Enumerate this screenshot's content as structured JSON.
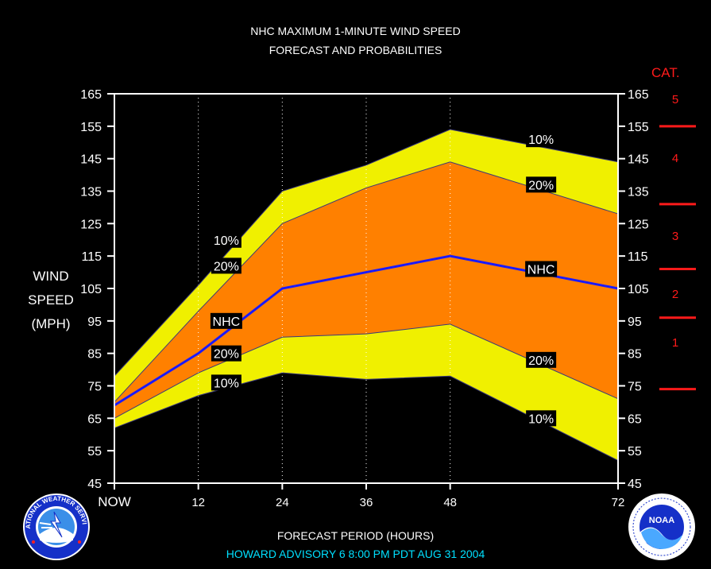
{
  "chart_data": {
    "type": "area",
    "title": "NHC MAXIMUM 1-MINUTE WIND SPEED",
    "subtitle": "FORECAST AND PROBABILITIES",
    "ylabel_lines": [
      "WIND",
      "SPEED",
      "(MPH)"
    ],
    "xlabel": "FORECAST PERIOD (HOURS)",
    "ylim": [
      45,
      165
    ],
    "yticks": [
      45,
      55,
      65,
      75,
      85,
      95,
      105,
      115,
      125,
      135,
      145,
      155,
      165
    ],
    "xlim": [
      0,
      72
    ],
    "xticks": [
      {
        "x": 0,
        "label": "NOW"
      },
      {
        "x": 12,
        "label": "12"
      },
      {
        "x": 24,
        "label": "24"
      },
      {
        "x": 36,
        "label": "36"
      },
      {
        "x": 48,
        "label": "48"
      },
      {
        "x": 72,
        "label": "72"
      }
    ],
    "x": [
      0,
      12,
      24,
      36,
      48,
      72
    ],
    "series": [
      {
        "name": "10%",
        "values": [
          78,
          106,
          135,
          143,
          154,
          144
        ],
        "color": "#f0f000"
      },
      {
        "name": "20%",
        "values": [
          70,
          98,
          125,
          136,
          144,
          128
        ],
        "color": "#ff8000"
      },
      {
        "name": "NHC",
        "values": [
          69,
          85,
          105,
          110,
          115,
          105
        ],
        "color": "#1a1aff"
      },
      {
        "name": "20%",
        "values": [
          65,
          79,
          90,
          91,
          94,
          71
        ],
        "color": "#ff8000"
      },
      {
        "name": "10%",
        "values": [
          62,
          72,
          79,
          77,
          78,
          52
        ],
        "color": "#f0f000"
      }
    ],
    "annotations": [
      {
        "text": "10%",
        "x": 16,
        "y": 120
      },
      {
        "text": "20%",
        "x": 16,
        "y": 112
      },
      {
        "text": "NHC",
        "x": 16,
        "y": 95
      },
      {
        "text": "20%",
        "x": 16,
        "y": 85
      },
      {
        "text": "10%",
        "x": 16,
        "y": 76
      },
      {
        "text": "10%",
        "x": 61,
        "y": 151
      },
      {
        "text": "20%",
        "x": 61,
        "y": 137
      },
      {
        "text": "NHC",
        "x": 61,
        "y": 111
      },
      {
        "text": "20%",
        "x": 61,
        "y": 83
      },
      {
        "text": "10%",
        "x": 61,
        "y": 65
      }
    ],
    "vertical_gridlines": [
      12,
      24,
      36,
      48
    ],
    "category_scale": {
      "title": "CAT.",
      "color": "#ff1a1a",
      "thresholds": [
        74,
        96,
        111,
        131,
        155
      ],
      "categories": [
        {
          "label": "1",
          "y": 88
        },
        {
          "label": "2",
          "y": 103
        },
        {
          "label": "3",
          "y": 121
        },
        {
          "label": "4",
          "y": 145
        },
        {
          "label": "5",
          "y": 163
        }
      ]
    },
    "legend": "none",
    "grid": "vertical dotted"
  },
  "footer": {
    "advisory": "HOWARD   ADVISORY  6 8:00  PM  PDT  AUG  31  2004",
    "advisory_color": "#00e0ff"
  },
  "logos": {
    "left": {
      "icon": "nws-logo",
      "text": "NATIONAL WEATHER SERVICE"
    },
    "right": {
      "icon": "noaa-logo",
      "text": "NOAA"
    }
  }
}
